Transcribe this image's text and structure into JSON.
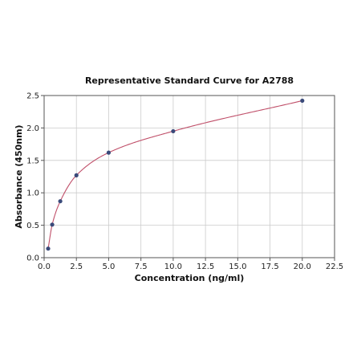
{
  "chart_data": {
    "type": "scatter",
    "title": "Representative Standard Curve for A2788",
    "xlabel": "Concentration (ng/ml)",
    "ylabel": "Absorbance (450nm)",
    "xlim": [
      0,
      22.5
    ],
    "ylim": [
      0,
      2.5
    ],
    "xticks": [
      0,
      2.5,
      5,
      7.5,
      10,
      12.5,
      15,
      17.5,
      20,
      22.5
    ],
    "xtick_labels": [
      "0.0",
      "2.5",
      "5.0",
      "7.5",
      "10.0",
      "12.5",
      "15.0",
      "17.5",
      "20.0",
      "22.5"
    ],
    "yticks": [
      0,
      0.5,
      1.0,
      1.5,
      2.0,
      2.5
    ],
    "ytick_labels": [
      "0.0",
      "0.5",
      "1.0",
      "1.5",
      "2.0",
      "2.5"
    ],
    "grid": true,
    "series": [
      {
        "x": [
          0.312,
          0.625,
          1.25,
          2.5,
          5,
          10,
          20
        ],
        "y": [
          0.14,
          0.51,
          0.87,
          1.27,
          1.62,
          1.95,
          2.42
        ],
        "color": "#3a4a7a"
      }
    ],
    "fit_curve": {
      "type": "4PL",
      "color": "#c0506a"
    }
  }
}
